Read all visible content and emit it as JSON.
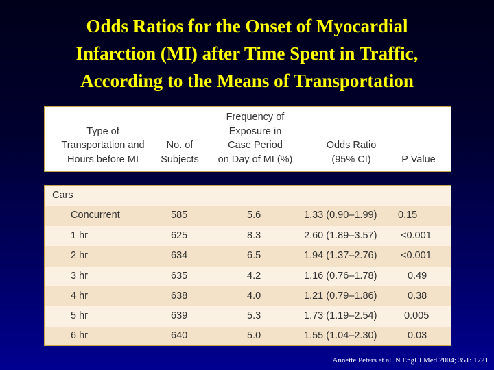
{
  "slide": {
    "title_lines": [
      "Odds Ratios for the Onset of Myocardial",
      "Infarction (MI) after Time Spent in Traffic,",
      "According to the Means of Transportation"
    ],
    "citation": "Annette Peters et al. N Engl J Med 2004; 351: 1721"
  },
  "table": {
    "headers": [
      [
        "Type of",
        "Transportation and",
        "Hours before MI"
      ],
      [
        "No. of",
        "Subjects"
      ],
      [
        "Frequency of",
        "Exposure in",
        "Case Period",
        "on Day of MI (%)"
      ],
      [
        "Odds Ratio",
        "(95% CI)"
      ],
      [
        "P Value"
      ]
    ],
    "group_label": "Cars",
    "rows": [
      {
        "label": "Concurrent",
        "n": "585",
        "freq": "5.6",
        "or": "1.33 (0.90–1.99)",
        "p": "0.15"
      },
      {
        "label": "1 hr",
        "n": "625",
        "freq": "8.3",
        "or": "2.60 (1.89–3.57)",
        "p": "<0.001"
      },
      {
        "label": "2 hr",
        "n": "634",
        "freq": "6.5",
        "or": "1.94 (1.37–2.76)",
        "p": "<0.001"
      },
      {
        "label": "3 hr",
        "n": "635",
        "freq": "4.2",
        "or": "1.16 (0.76–1.78)",
        "p": "0.49"
      },
      {
        "label": "4 hr",
        "n": "638",
        "freq": "4.0",
        "or": "1.21 (0.79–1.86)",
        "p": "0.38"
      },
      {
        "label": "5 hr",
        "n": "639",
        "freq": "5.3",
        "or": "1.73 (1.19–2.54)",
        "p": "0.005"
      },
      {
        "label": "6 hr",
        "n": "640",
        "freq": "5.0",
        "or": "1.55 (1.04–2.30)",
        "p": "0.03"
      }
    ]
  },
  "colors": {
    "title": "#ffff00",
    "table_border": "#c9a64a",
    "row_light": "#fbf1e3",
    "row_shaded": "#f3e2c8"
  }
}
